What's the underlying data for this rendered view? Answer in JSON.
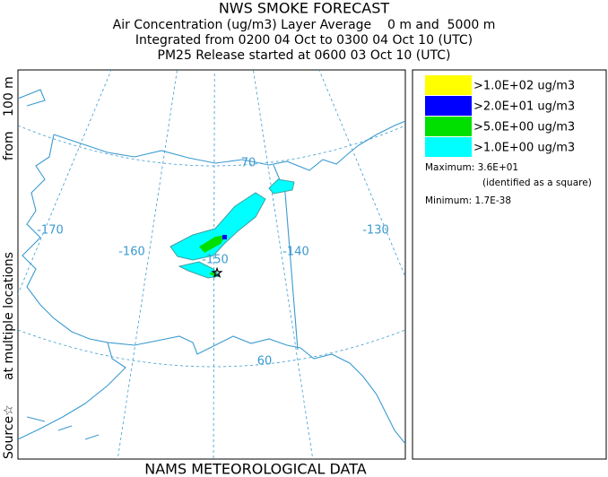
{
  "header": {
    "title": "NWS SMOKE FORECAST",
    "lines": [
      "Air Concentration (ug/m3) Layer Average    0 m and  5000 m",
      "Integrated from 0200 04 Oct to 0300 04 Oct 10 (UTC)",
      "PM25 Release started at 0600 03 Oct 10 (UTC)"
    ]
  },
  "side_label": [
    "Source☆",
    "at multiple locations",
    "from",
    "100 m"
  ],
  "map": {
    "grid_labels": [
      "70",
      "-170",
      "-160",
      "-150",
      "-140",
      "-130",
      "60"
    ]
  },
  "legend": {
    "entries": [
      {
        "label": ">1.0E+02 ug/m3",
        "color": "#ffff00"
      },
      {
        "label": ">2.0E+01 ug/m3",
        "color": "#0000ff"
      },
      {
        "label": ">5.0E+00 ug/m3",
        "color": "#00e000"
      },
      {
        "label": ">1.0E+00 ug/m3",
        "color": "#00ffff"
      }
    ],
    "maximum": "Maximum: 3.6E+01",
    "maximum_note": "(identified as a square)",
    "minimum": "Minimum: 1.7E-38"
  },
  "footer": "NAMS METEOROLOGICAL DATA"
}
